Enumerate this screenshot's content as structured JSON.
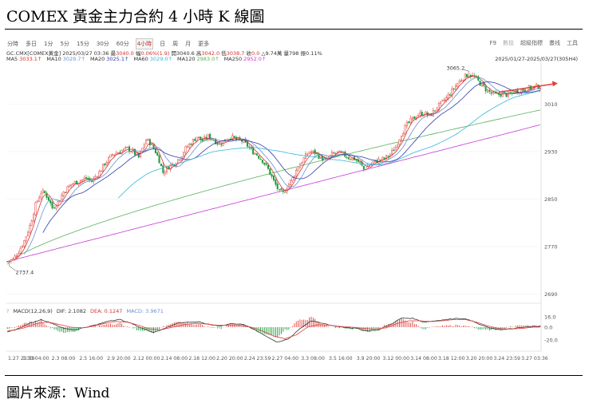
{
  "title": "COMEX 黃金主力合約 4 小時 K 線圖",
  "source": "圖片來源：Wind",
  "toolbar": {
    "periods": [
      "分時",
      "多日",
      "1分",
      "5分",
      "15分",
      "30分",
      "60分",
      "4小時",
      "日",
      "周",
      "月",
      "更多"
    ],
    "selected_index": 7,
    "right": [
      "F9",
      "數投",
      "超級指標",
      "畫线",
      "工具"
    ],
    "right_dim_index": 1
  },
  "info_line": {
    "symbol": "GC.CMX[COMEX黃金]",
    "datetime": "2025/03/27 03:36",
    "items": [
      {
        "label": "最",
        "value": "3040.0",
        "red": true
      },
      {
        "label": "幅",
        "value": "0.06%(1.9)",
        "red": true
      },
      {
        "label": "開",
        "value": "3040.6",
        "red": false
      },
      {
        "label": "高",
        "value": "3042.0",
        "red": true
      },
      {
        "label": "低",
        "value": "3038.7",
        "red": true
      },
      {
        "label": "收",
        "value": "0.0",
        "red": true
      },
      {
        "label": "△",
        "value": "9.74萬",
        "red": false
      },
      {
        "label": "量",
        "value": "798",
        "red": false
      },
      {
        "label": "振",
        "value": "0.11%",
        "red": false
      }
    ]
  },
  "ma_line": [
    {
      "label": "MA5",
      "value": "3033.1↑",
      "color": "#d4322c"
    },
    {
      "label": "MA10",
      "value": "3029.7↑",
      "color": "#6b8fd1"
    },
    {
      "label": "MA20",
      "value": "3025.1↑",
      "color": "#2f3da8"
    },
    {
      "label": "MA60",
      "value": "3029.0↑",
      "color": "#38b6d8"
    },
    {
      "label": "MA120",
      "value": "2983.0↑",
      "color": "#5ab05a"
    },
    {
      "label": "MA250",
      "value": "2952.0↑",
      "color": "#c73ad4"
    }
  ],
  "date_range": "2025/01/27-2025/03/27(305H4)",
  "macd_line": [
    {
      "text": "MACD(12,26,9)",
      "color": "#333"
    },
    {
      "text": "DIF: 2.1082",
      "color": "#333"
    },
    {
      "text": "DEA: 0.1247",
      "color": "#d4322c"
    },
    {
      "text": "MACD: 3.9671",
      "color": "#6b8fd1"
    }
  ],
  "colors": {
    "up": "#e0403a",
    "down": "#1a9c3a",
    "ma5": "#d4322c",
    "ma10": "#6b8fd1",
    "ma20": "#2f3da8",
    "ma60": "#38b6d8",
    "ma120": "#5ab05a",
    "ma250": "#c73ad4",
    "arrow": "#e0403a"
  },
  "chart_data": {
    "type": "candlestick",
    "period": "4H",
    "x_ticks": [
      "1.27 23:59",
      "1.30 04:00",
      "2.3 08:00",
      "2.5 16:00",
      "2.9 20:00",
      "2.12 00:00",
      "2.14 08:00",
      "2.18 12:00",
      "2.20 20:00",
      "2.24 23:59",
      "2.27 04:00",
      "3.3 08:00",
      "3.5 16:00",
      "3.9 20:00",
      "3.12 00:00",
      "3.14 08:00",
      "3.18 12:00",
      "3.20 20:00",
      "3.24 23:59",
      "3.27 03:36"
    ],
    "y_ticks": [
      2690,
      2770,
      2850,
      2930,
      3010
    ],
    "ylim": [
      2680,
      3075
    ],
    "annotations": [
      {
        "label": "2737.4",
        "type": "low"
      },
      {
        "label": "3065.2",
        "type": "high"
      }
    ],
    "close_keypoints": [
      [
        0,
        2745
      ],
      [
        3,
        2748
      ],
      [
        6,
        2762
      ],
      [
        9,
        2780
      ],
      [
        12,
        2805
      ],
      [
        15,
        2840
      ],
      [
        18,
        2862
      ],
      [
        20,
        2860
      ],
      [
        22,
        2850
      ],
      [
        24,
        2835
      ],
      [
        27,
        2845
      ],
      [
        30,
        2862
      ],
      [
        34,
        2875
      ],
      [
        38,
        2880
      ],
      [
        42,
        2885
      ],
      [
        45,
        2880
      ],
      [
        49,
        2895
      ],
      [
        52,
        2910
      ],
      [
        56,
        2925
      ],
      [
        60,
        2930
      ],
      [
        64,
        2935
      ],
      [
        67,
        2930
      ],
      [
        70,
        2920
      ],
      [
        72,
        2935
      ],
      [
        74,
        2950
      ],
      [
        76,
        2945
      ],
      [
        79,
        2930
      ],
      [
        81,
        2915
      ],
      [
        83,
        2895
      ],
      [
        86,
        2905
      ],
      [
        89,
        2910
      ],
      [
        92,
        2920
      ],
      [
        95,
        2935
      ],
      [
        98,
        2945
      ],
      [
        101,
        2955
      ],
      [
        104,
        2948
      ],
      [
        107,
        2955
      ],
      [
        110,
        2950
      ],
      [
        113,
        2942
      ],
      [
        116,
        2950
      ],
      [
        119,
        2955
      ],
      [
        122,
        2950
      ],
      [
        125,
        2948
      ],
      [
        128,
        2940
      ],
      [
        130,
        2932
      ],
      [
        133,
        2925
      ],
      [
        136,
        2915
      ],
      [
        139,
        2900
      ],
      [
        142,
        2880
      ],
      [
        145,
        2862
      ],
      [
        147,
        2860
      ],
      [
        149,
        2870
      ],
      [
        152,
        2885
      ],
      [
        155,
        2905
      ],
      [
        158,
        2918
      ],
      [
        161,
        2930
      ],
      [
        164,
        2928
      ],
      [
        167,
        2920
      ],
      [
        170,
        2915
      ],
      [
        173,
        2925
      ],
      [
        176,
        2928
      ],
      [
        179,
        2925
      ],
      [
        182,
        2920
      ],
      [
        185,
        2918
      ],
      [
        188,
        2910
      ],
      [
        190,
        2900
      ],
      [
        192,
        2905
      ],
      [
        195,
        2912
      ],
      [
        198,
        2915
      ],
      [
        201,
        2918
      ],
      [
        204,
        2925
      ],
      [
        207,
        2938
      ],
      [
        210,
        2960
      ],
      [
        213,
        2975
      ],
      [
        216,
        2985
      ],
      [
        219,
        2992
      ],
      [
        222,
        2995
      ],
      [
        225,
        2990
      ],
      [
        228,
        3000
      ],
      [
        231,
        3010
      ],
      [
        234,
        3020
      ],
      [
        237,
        3032
      ],
      [
        240,
        3045
      ],
      [
        243,
        3055
      ],
      [
        246,
        3060
      ],
      [
        249,
        3055
      ],
      [
        252,
        3045
      ],
      [
        255,
        3035
      ],
      [
        258,
        3028
      ],
      [
        261,
        3025
      ],
      [
        264,
        3028
      ],
      [
        267,
        3025
      ],
      [
        270,
        3030
      ],
      [
        273,
        3033
      ],
      [
        276,
        3035
      ],
      [
        280,
        3038
      ],
      [
        284,
        3040
      ]
    ],
    "series": [
      {
        "name": "MA5",
        "period": 5
      },
      {
        "name": "MA10",
        "period": 10
      },
      {
        "name": "MA20",
        "period": 20
      },
      {
        "name": "MA60",
        "period": 60
      },
      {
        "name": "MA120",
        "period": 120,
        "start": 2740,
        "end": 3000
      },
      {
        "name": "MA250",
        "period": 250,
        "start": 2745,
        "end": 2975
      }
    ],
    "macd": {
      "y_ticks": [
        16.0,
        0.0,
        -20.0
      ],
      "ylim": [
        -30,
        20
      ],
      "dif_keypoints": [
        [
          0,
          -8
        ],
        [
          6,
          -2
        ],
        [
          12,
          6
        ],
        [
          18,
          12
        ],
        [
          24,
          6
        ],
        [
          30,
          -2
        ],
        [
          36,
          -4
        ],
        [
          42,
          0
        ],
        [
          48,
          4
        ],
        [
          54,
          10
        ],
        [
          60,
          12
        ],
        [
          66,
          6
        ],
        [
          72,
          -2
        ],
        [
          78,
          -8
        ],
        [
          84,
          -2
        ],
        [
          90,
          6
        ],
        [
          96,
          8
        ],
        [
          102,
          8
        ],
        [
          108,
          4
        ],
        [
          114,
          2
        ],
        [
          120,
          6
        ],
        [
          126,
          4
        ],
        [
          132,
          -4
        ],
        [
          138,
          -14
        ],
        [
          144,
          -24
        ],
        [
          150,
          -18
        ],
        [
          156,
          -2
        ],
        [
          162,
          10
        ],
        [
          168,
          6
        ],
        [
          174,
          2
        ],
        [
          180,
          0
        ],
        [
          186,
          -2
        ],
        [
          192,
          -6
        ],
        [
          198,
          -4
        ],
        [
          204,
          4
        ],
        [
          210,
          14
        ],
        [
          216,
          14
        ],
        [
          222,
          8
        ],
        [
          228,
          10
        ],
        [
          234,
          12
        ],
        [
          240,
          14
        ],
        [
          246,
          12
        ],
        [
          252,
          4
        ],
        [
          258,
          -2
        ],
        [
          264,
          -4
        ],
        [
          270,
          -2
        ],
        [
          276,
          0
        ],
        [
          284,
          2
        ]
      ],
      "dea_keypoints": [
        [
          0,
          -6
        ],
        [
          8,
          -2
        ],
        [
          16,
          6
        ],
        [
          22,
          8
        ],
        [
          28,
          4
        ],
        [
          34,
          0
        ],
        [
          40,
          -1
        ],
        [
          46,
          2
        ],
        [
          52,
          6
        ],
        [
          58,
          9
        ],
        [
          64,
          8
        ],
        [
          70,
          3
        ],
        [
          76,
          -3
        ],
        [
          82,
          -4
        ],
        [
          88,
          0
        ],
        [
          94,
          4
        ],
        [
          100,
          6
        ],
        [
          106,
          5
        ],
        [
          112,
          3
        ],
        [
          118,
          3
        ],
        [
          124,
          3
        ],
        [
          130,
          0
        ],
        [
          136,
          -6
        ],
        [
          142,
          -14
        ],
        [
          148,
          -18
        ],
        [
          154,
          -12
        ],
        [
          160,
          0
        ],
        [
          166,
          4
        ],
        [
          172,
          3
        ],
        [
          178,
          1
        ],
        [
          184,
          0
        ],
        [
          190,
          -2
        ],
        [
          196,
          -3
        ],
        [
          202,
          -1
        ],
        [
          208,
          6
        ],
        [
          214,
          10
        ],
        [
          220,
          10
        ],
        [
          226,
          9
        ],
        [
          232,
          10
        ],
        [
          238,
          12
        ],
        [
          244,
          12
        ],
        [
          250,
          8
        ],
        [
          256,
          2
        ],
        [
          262,
          -2
        ],
        [
          268,
          -3
        ],
        [
          274,
          -2
        ],
        [
          280,
          0
        ],
        [
          284,
          0.1
        ]
      ]
    }
  }
}
